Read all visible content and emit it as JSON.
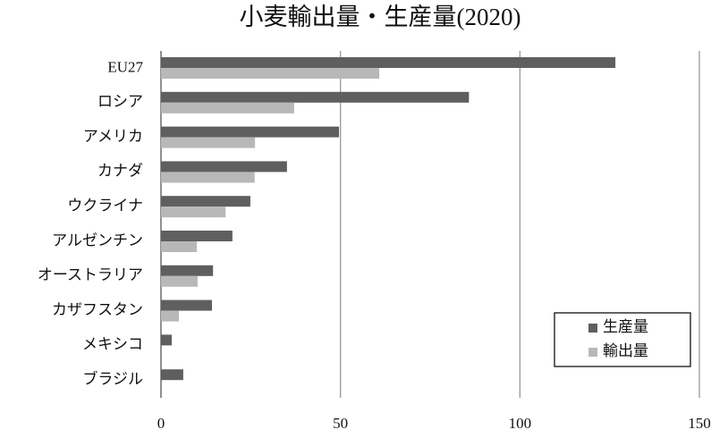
{
  "chart_data": {
    "type": "hbar",
    "title": "小麦輸出量・生産量(2020)",
    "categories": [
      "EU27",
      "ロシア",
      "アメリカ",
      "カナダ",
      "ウクライナ",
      "アルゼンチン",
      "オーストラリア",
      "カザフスタン",
      "メキシコ",
      "ブラジル"
    ],
    "series": [
      {
        "name": "生産量",
        "color": "#5f5f5f",
        "values": [
          126.6,
          85.8,
          49.6,
          35.1,
          24.9,
          19.9,
          14.5,
          14.2,
          3.0,
          6.2
        ]
      },
      {
        "name": "輸出量",
        "color": "#b8b8b8",
        "values": [
          60.8,
          37.1,
          26.2,
          26.1,
          18.0,
          10.0,
          10.2,
          5.0,
          0,
          0
        ]
      }
    ],
    "xlim": [
      0,
      150
    ],
    "xticks": [
      0,
      50,
      100,
      150
    ],
    "grid": true,
    "legend": "lower right"
  }
}
